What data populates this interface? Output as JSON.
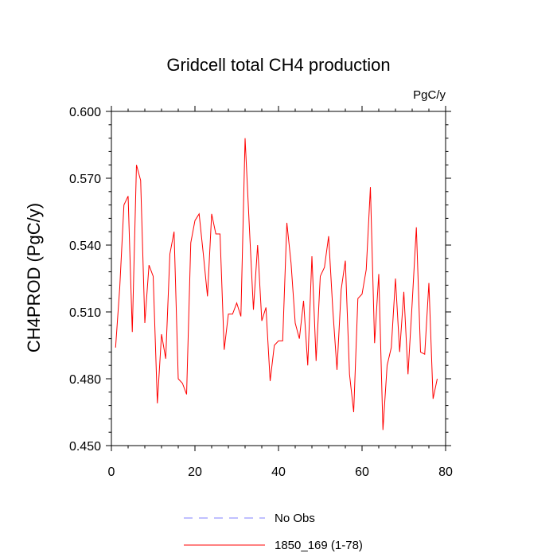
{
  "chart_data": {
    "type": "line",
    "title": "Gridcell total CH4 production",
    "units": "PgC/y",
    "xlabel": "",
    "ylabel": "CH4PROD  (PgC/y)",
    "xlim": [
      0,
      80
    ],
    "ylim": [
      0.45,
      0.6
    ],
    "xticks": [
      "0",
      "20",
      "40",
      "60",
      "80"
    ],
    "yticks": [
      "0.450",
      "0.480",
      "0.510",
      "0.540",
      "0.570",
      "0.600"
    ],
    "grid": false,
    "legend_position": "bottom",
    "legend": [
      {
        "name": "No Obs",
        "style": "dashed",
        "color": "#8080ff"
      },
      {
        "name": "1850_169 (1-78)",
        "style": "solid",
        "color": "#ff0000"
      }
    ],
    "series": [
      {
        "name": "1850_169 (1-78)",
        "color": "#ff0000",
        "x": [
          1,
          2,
          3,
          4,
          5,
          6,
          7,
          8,
          9,
          10,
          11,
          12,
          13,
          14,
          15,
          16,
          17,
          18,
          19,
          20,
          21,
          22,
          23,
          24,
          25,
          26,
          27,
          28,
          29,
          30,
          31,
          32,
          33,
          34,
          35,
          36,
          37,
          38,
          39,
          40,
          41,
          42,
          43,
          44,
          45,
          46,
          47,
          48,
          49,
          50,
          51,
          52,
          53,
          54,
          55,
          56,
          57,
          58,
          59,
          60,
          61,
          62,
          63,
          64,
          65,
          66,
          67,
          68,
          69,
          70,
          71,
          72,
          73,
          74,
          75,
          76,
          77,
          78
        ],
        "values": [
          0.494,
          0.521,
          0.558,
          0.562,
          0.501,
          0.576,
          0.569,
          0.505,
          0.531,
          0.526,
          0.469,
          0.5,
          0.489,
          0.536,
          0.546,
          0.48,
          0.478,
          0.473,
          0.541,
          0.551,
          0.554,
          0.536,
          0.517,
          0.554,
          0.545,
          0.545,
          0.493,
          0.509,
          0.509,
          0.514,
          0.508,
          0.588,
          0.549,
          0.511,
          0.54,
          0.506,
          0.512,
          0.479,
          0.495,
          0.497,
          0.497,
          0.55,
          0.532,
          0.505,
          0.498,
          0.515,
          0.486,
          0.535,
          0.488,
          0.526,
          0.53,
          0.544,
          0.511,
          0.484,
          0.52,
          0.533,
          0.482,
          0.465,
          0.516,
          0.518,
          0.529,
          0.566,
          0.496,
          0.527,
          0.457,
          0.486,
          0.494,
          0.525,
          0.492,
          0.519,
          0.482,
          0.514,
          0.548,
          0.492,
          0.491,
          0.523,
          0.471,
          0.48
        ]
      }
    ]
  }
}
